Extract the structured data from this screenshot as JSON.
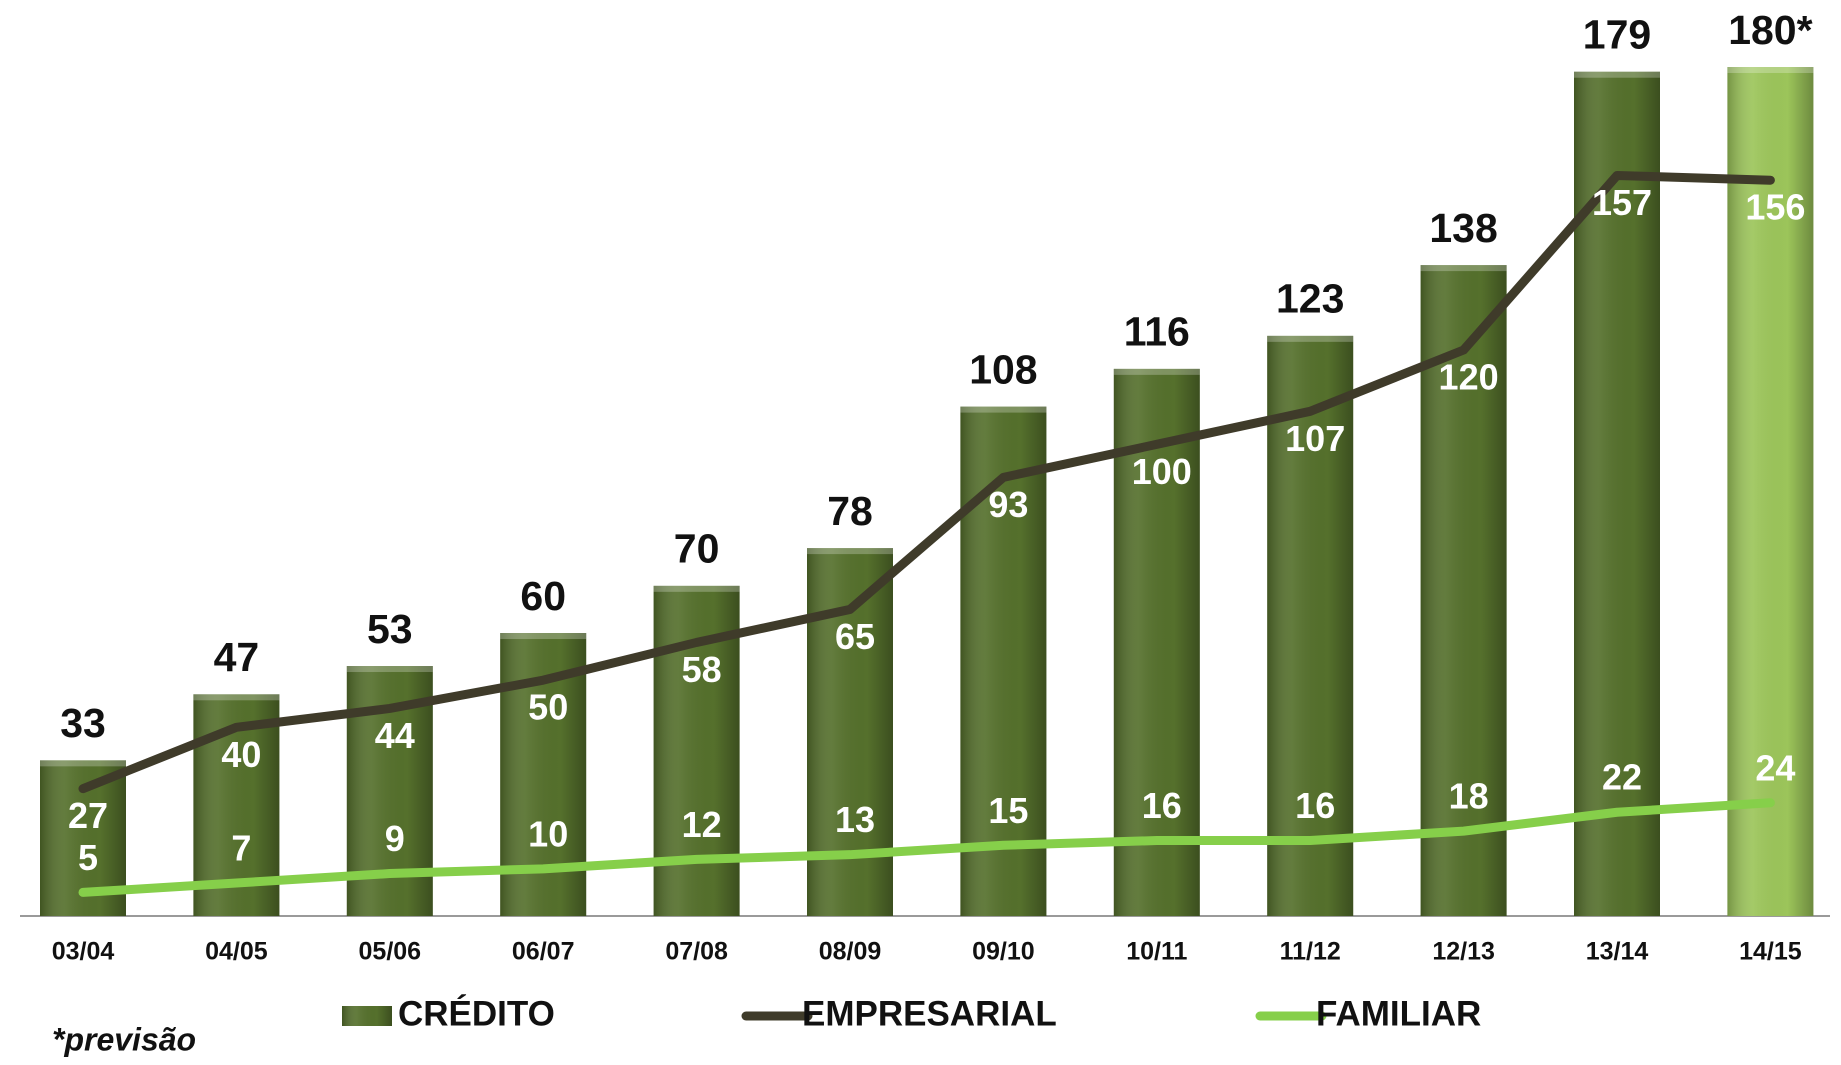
{
  "chart_data": {
    "type": "bar",
    "categories": [
      "03/04",
      "04/05",
      "05/06",
      "06/07",
      "07/08",
      "08/09",
      "09/10",
      "10/11",
      "11/12",
      "12/13",
      "13/14",
      "14/15"
    ],
    "series": [
      {
        "name": "CRÉDITO",
        "type": "bar",
        "colors": [
          "#55702c",
          "#55702c",
          "#55702c",
          "#55702c",
          "#55702c",
          "#55702c",
          "#55702c",
          "#55702c",
          "#55702c",
          "#55702c",
          "#55702c",
          "#9cc55a"
        ],
        "values": [
          33,
          47,
          53,
          60,
          70,
          78,
          108,
          116,
          123,
          138,
          179,
          180
        ],
        "value_labels": [
          "33",
          "47",
          "53",
          "60",
          "70",
          "78",
          "108",
          "116",
          "123",
          "138",
          "179",
          "180*"
        ]
      },
      {
        "name": "EMPRESARIAL",
        "type": "line",
        "color": "#3f3b2a",
        "values": [
          27,
          40,
          44,
          50,
          58,
          65,
          93,
          100,
          107,
          120,
          157,
          156
        ]
      },
      {
        "name": "FAMILIAR",
        "type": "line",
        "color": "#86cf4a",
        "values": [
          5,
          7,
          9,
          10,
          12,
          13,
          15,
          16,
          16,
          18,
          22,
          24
        ]
      }
    ],
    "ylim": [
      0,
      180
    ],
    "note": "*previsão"
  }
}
